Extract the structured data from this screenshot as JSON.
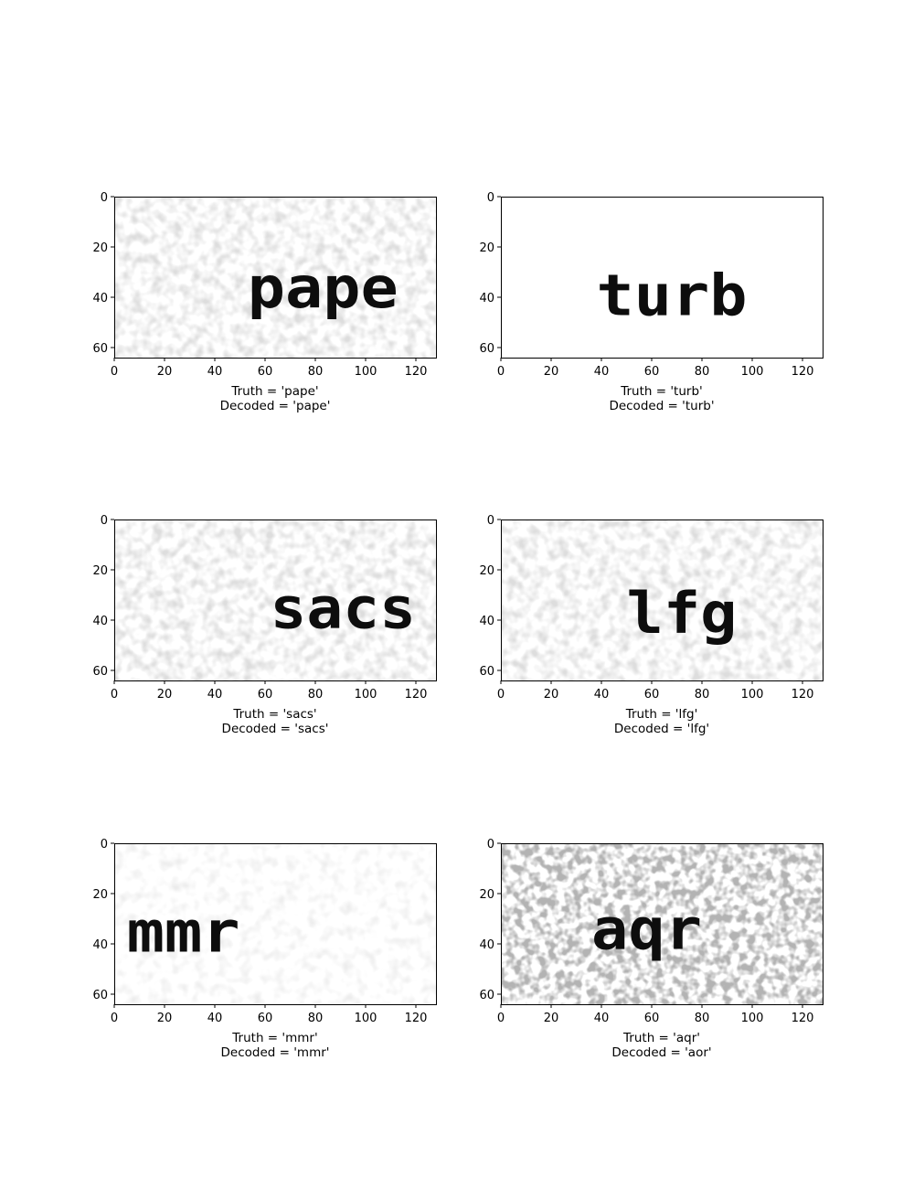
{
  "chart_data": [
    {
      "type": "image",
      "image_text": "pape",
      "truth": "Truth = 'pape'",
      "decoded": "Decoded = 'pape'",
      "x_ticks": [
        0,
        20,
        40,
        60,
        80,
        100,
        120
      ],
      "y_ticks": [
        0,
        20,
        40,
        60
      ],
      "xlim": [
        0,
        128
      ],
      "ylim": [
        64,
        0
      ],
      "word_x": [
        53,
        113
      ],
      "word_baseline_y": 44,
      "noise": "light"
    },
    {
      "type": "image",
      "image_text": "turb",
      "truth": "Truth = 'turb'",
      "decoded": "Decoded = 'turb'",
      "x_ticks": [
        0,
        20,
        40,
        60,
        80,
        100,
        120
      ],
      "y_ticks": [
        0,
        20,
        40,
        60
      ],
      "xlim": [
        0,
        128
      ],
      "ylim": [
        64,
        0
      ],
      "word_x": [
        38,
        98
      ],
      "word_baseline_y": 47,
      "noise": "none"
    },
    {
      "type": "image",
      "image_text": "sacs",
      "truth": "Truth = 'sacs'",
      "decoded": "Decoded = 'sacs'",
      "x_ticks": [
        0,
        20,
        40,
        60,
        80,
        100,
        120
      ],
      "y_ticks": [
        0,
        20,
        40,
        60
      ],
      "xlim": [
        0,
        128
      ],
      "ylim": [
        64,
        0
      ],
      "word_x": [
        62,
        120
      ],
      "word_baseline_y": 43,
      "noise": "light"
    },
    {
      "type": "image",
      "image_text": "lfg",
      "truth": "Truth = 'lfg'",
      "decoded": "Decoded = 'lfg'",
      "x_ticks": [
        0,
        20,
        40,
        60,
        80,
        100,
        120
      ],
      "y_ticks": [
        0,
        20,
        40,
        60
      ],
      "xlim": [
        0,
        128
      ],
      "ylim": [
        64,
        0
      ],
      "word_x": [
        50,
        94
      ],
      "word_baseline_y": 45,
      "noise": "light"
    },
    {
      "type": "image",
      "image_text": "mmr",
      "truth": "Truth = 'mmr'",
      "decoded": "Decoded = 'mmr'",
      "x_ticks": [
        0,
        20,
        40,
        60,
        80,
        100,
        120
      ],
      "y_ticks": [
        0,
        20,
        40,
        60
      ],
      "xlim": [
        0,
        128
      ],
      "ylim": [
        64,
        0
      ],
      "word_x": [
        5,
        50
      ],
      "word_baseline_y": 43,
      "noise": "very-light"
    },
    {
      "type": "image",
      "image_text": "aqr",
      "truth": "Truth = 'aqr'",
      "decoded": "Decoded = 'aor'",
      "x_ticks": [
        0,
        20,
        40,
        60,
        80,
        100,
        120
      ],
      "y_ticks": [
        0,
        20,
        40,
        60
      ],
      "xlim": [
        0,
        128
      ],
      "ylim": [
        64,
        0
      ],
      "word_x": [
        36,
        80
      ],
      "word_baseline_y": 42,
      "noise": "heavy"
    }
  ]
}
